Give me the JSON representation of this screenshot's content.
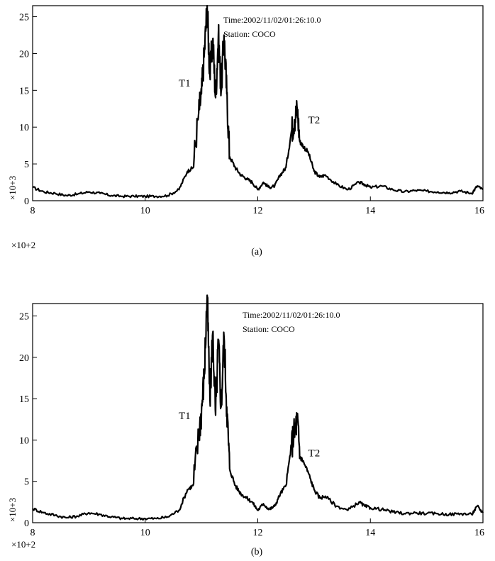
{
  "chart_data": [
    {
      "type": "line",
      "caption": "(a)",
      "info_time": "Time:2002/11/02/01:26:10.0",
      "info_station": "Station: COCO",
      "x_multiplier": "×10+2",
      "y_multiplier": "×10+3",
      "xlim": [
        8,
        16
      ],
      "ylim": [
        0,
        26.5
      ],
      "x_ticks": [
        8,
        10,
        12,
        14,
        16
      ],
      "y_ticks": [
        0,
        5,
        10,
        15,
        20,
        25
      ],
      "annotations": [
        {
          "text": "T1",
          "x": 10.7,
          "y": 15.5
        },
        {
          "text": "T2",
          "x": 13.0,
          "y": 10.5
        }
      ],
      "series": [
        {
          "x": [
            8.0,
            8.2,
            8.4,
            8.6,
            8.8,
            9.0,
            9.2,
            9.4,
            9.6,
            9.8,
            10.0,
            10.2,
            10.4,
            10.6,
            10.75,
            10.85,
            10.95,
            11.0,
            11.05,
            11.1,
            11.15,
            11.2,
            11.25,
            11.3,
            11.35,
            11.4,
            11.45,
            11.5,
            11.6,
            11.7,
            11.8,
            11.9,
            12.0,
            12.1,
            12.2,
            12.3,
            12.4,
            12.5,
            12.6,
            12.65,
            12.7,
            12.75,
            12.8,
            12.9,
            13.0,
            13.1,
            13.2,
            13.4,
            13.6,
            13.8,
            13.9,
            14.0,
            14.2,
            14.4,
            14.6,
            14.8,
            15.0,
            15.2,
            15.4,
            15.6,
            15.8,
            15.9,
            16.0
          ],
          "y": [
            1.8,
            1.2,
            1.0,
            0.7,
            0.9,
            1.2,
            1.0,
            0.7,
            0.6,
            0.6,
            0.6,
            0.6,
            0.7,
            1.5,
            4.0,
            4.5,
            12.0,
            14.5,
            20.0,
            26.5,
            17.0,
            22.0,
            14.0,
            22.5,
            15.0,
            22.5,
            14.5,
            6.0,
            4.5,
            3.5,
            3.0,
            2.5,
            1.5,
            2.5,
            1.8,
            2.0,
            3.5,
            4.5,
            9.5,
            11.0,
            12.5,
            8.0,
            7.5,
            6.5,
            4.0,
            3.2,
            3.5,
            2.2,
            1.5,
            2.5,
            2.2,
            1.8,
            2.0,
            1.5,
            1.2,
            1.4,
            1.3,
            1.2,
            1.1,
            1.3,
            1.0,
            2.0,
            1.5
          ]
        }
      ]
    },
    {
      "type": "line",
      "caption": "(b)",
      "info_time": "Time:2002/11/02/01:26:10.0",
      "info_station": "Station: COCO",
      "x_multiplier": "×10+2",
      "y_multiplier": "×10+3",
      "xlim": [
        8,
        16
      ],
      "ylim": [
        0,
        26.5
      ],
      "x_ticks": [
        8,
        10,
        12,
        14,
        16
      ],
      "y_ticks": [
        0,
        5,
        10,
        15,
        20,
        25
      ],
      "annotations": [
        {
          "text": "T1",
          "x": 10.7,
          "y": 12.5
        },
        {
          "text": "T2",
          "x": 13.0,
          "y": 8.0
        }
      ],
      "series": [
        {
          "x": [
            8.0,
            8.2,
            8.4,
            8.6,
            8.8,
            9.0,
            9.2,
            9.4,
            9.6,
            9.8,
            10.0,
            10.2,
            10.4,
            10.6,
            10.75,
            10.85,
            10.95,
            11.0,
            11.05,
            11.1,
            11.15,
            11.2,
            11.25,
            11.3,
            11.35,
            11.4,
            11.45,
            11.5,
            11.6,
            11.7,
            11.8,
            11.9,
            12.0,
            12.1,
            12.2,
            12.3,
            12.4,
            12.5,
            12.6,
            12.65,
            12.7,
            12.75,
            12.8,
            12.9,
            13.0,
            13.1,
            13.2,
            13.4,
            13.6,
            13.8,
            13.9,
            14.0,
            14.2,
            14.4,
            14.6,
            14.8,
            15.0,
            15.2,
            15.4,
            15.6,
            15.8,
            15.9,
            16.0
          ],
          "y": [
            1.7,
            1.2,
            0.9,
            0.6,
            0.8,
            1.2,
            1.0,
            0.7,
            0.5,
            0.5,
            0.5,
            0.5,
            0.7,
            1.5,
            4.0,
            4.5,
            10.5,
            13.5,
            18.0,
            27.5,
            15.0,
            23.0,
            13.0,
            22.0,
            14.0,
            22.5,
            14.0,
            6.5,
            4.5,
            3.5,
            3.0,
            2.5,
            1.5,
            2.3,
            1.6,
            2.0,
            3.5,
            4.5,
            9.5,
            11.0,
            12.5,
            8.0,
            7.5,
            6.0,
            4.0,
            3.0,
            3.2,
            2.0,
            1.5,
            2.5,
            2.0,
            1.8,
            1.6,
            1.3,
            1.1,
            1.2,
            1.1,
            1.1,
            1.0,
            1.1,
            1.0,
            2.0,
            1.2
          ]
        }
      ]
    }
  ]
}
